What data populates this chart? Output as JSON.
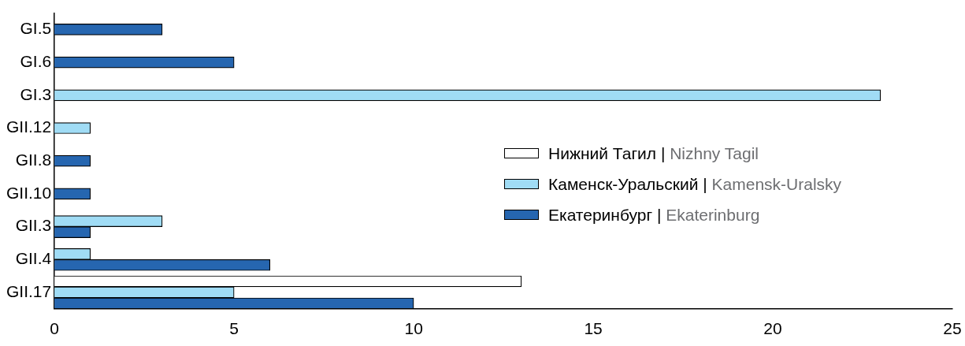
{
  "chart_data": {
    "type": "bar",
    "orientation": "horizontal",
    "categories": [
      "GI.5",
      "GI.6",
      "GI.3",
      "GII.12",
      "GII.8",
      "GII.10",
      "GII.3",
      "GII.4",
      "GII.17"
    ],
    "series": [
      {
        "name": "Нижний Тагил | Nizhny Tagil",
        "color": "#ffffff",
        "values": [
          null,
          null,
          null,
          null,
          null,
          null,
          null,
          null,
          13
        ]
      },
      {
        "name": "Каменск-Уральский | Kamensk-Uralsky",
        "color": "#a0dcf5",
        "values": [
          null,
          null,
          23,
          1,
          null,
          null,
          3,
          1,
          5
        ]
      },
      {
        "name": "Екатеринбург | Ekaterinburg",
        "color": "#2666b0",
        "values": [
          3,
          5,
          null,
          null,
          1,
          1,
          1,
          6,
          10
        ]
      }
    ],
    "xlim": [
      0,
      25
    ],
    "xticks": [
      0,
      5,
      10,
      15,
      20,
      25
    ],
    "grid": false,
    "legend": "right"
  }
}
